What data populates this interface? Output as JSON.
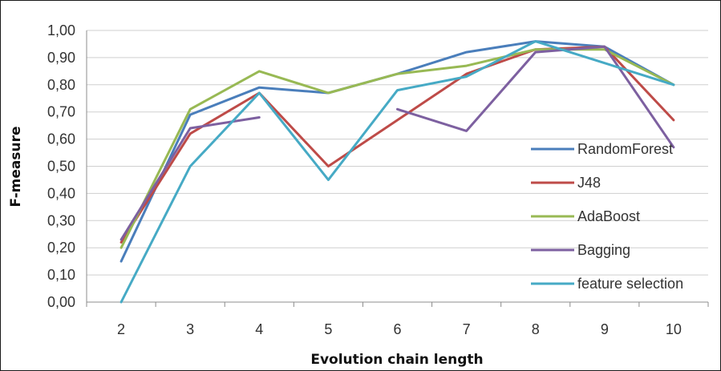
{
  "chart_data": {
    "type": "line",
    "xlabel": "Evolution chain length",
    "ylabel": "F-measure",
    "categories": [
      "2",
      "3",
      "4",
      "5",
      "6",
      "7",
      "8",
      "9",
      "10"
    ],
    "ylim": [
      0,
      1
    ],
    "yticks": [
      "0,00",
      "0,10",
      "0,20",
      "0,30",
      "0,40",
      "0,50",
      "0,60",
      "0,70",
      "0,80",
      "0,90",
      "1,00"
    ],
    "grid": true,
    "legend_position": "right",
    "series": [
      {
        "name": "RandomForest",
        "color": "#4a7ebb",
        "values": [
          0.15,
          0.69,
          0.79,
          0.77,
          0.84,
          0.92,
          0.96,
          0.94,
          0.8
        ]
      },
      {
        "name": "J48",
        "color": "#be4b48",
        "values": [
          0.22,
          0.62,
          0.77,
          0.5,
          0.67,
          0.84,
          0.93,
          0.94,
          0.67
        ]
      },
      {
        "name": "AdaBoost",
        "color": "#98b954",
        "values": [
          0.2,
          0.71,
          0.85,
          0.77,
          0.84,
          0.87,
          0.93,
          0.93,
          0.8
        ]
      },
      {
        "name": "Bagging",
        "color": "#7d60a0",
        "values": [
          0.23,
          0.64,
          0.68,
          null,
          0.71,
          0.63,
          0.92,
          0.94,
          0.57
        ]
      },
      {
        "name": "feature selection",
        "color": "#46aac5",
        "values": [
          0.0,
          0.5,
          0.77,
          0.45,
          0.78,
          0.83,
          0.96,
          0.88,
          0.8
        ]
      }
    ]
  }
}
